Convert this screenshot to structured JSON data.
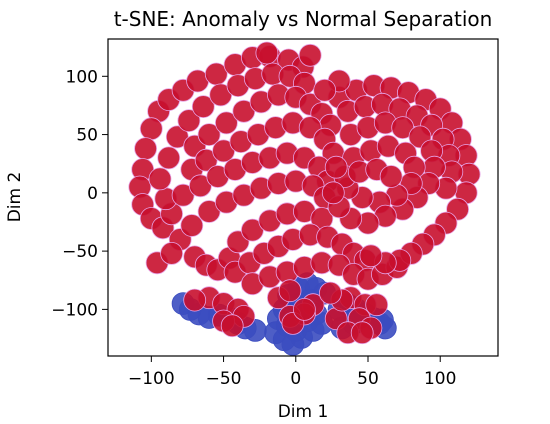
{
  "chart_data": {
    "type": "scatter",
    "title": "t-SNE: Anomaly vs Normal Separation",
    "xlabel": "Dim 1",
    "ylabel": "Dim 2",
    "xlim": [
      -130,
      140
    ],
    "ylim": [
      -140,
      132
    ],
    "xticks": [
      -100,
      -50,
      0,
      50,
      100
    ],
    "xtick_labels": [
      "−100",
      "−50",
      "0",
      "50",
      "100"
    ],
    "yticks": [
      -100,
      -50,
      0,
      50,
      100
    ],
    "ytick_labels": [
      "−100",
      "−50",
      "0",
      "50",
      "100"
    ],
    "grid": false,
    "legend": "none",
    "series": [
      {
        "color": "#3b4cc0",
        "points": [
          [
            -78,
            -95
          ],
          [
            -73,
            -100
          ],
          [
            -67,
            -104
          ],
          [
            -60,
            -107
          ],
          [
            -53,
            -105
          ],
          [
            -45,
            -108
          ],
          [
            -40,
            -112
          ],
          [
            -35,
            -116
          ],
          [
            -28,
            -118
          ],
          [
            -5,
            -88
          ],
          [
            2,
            -82
          ],
          [
            8,
            -78
          ],
          [
            14,
            -82
          ],
          [
            20,
            -86
          ],
          [
            10,
            -92
          ],
          [
            0,
            -96
          ],
          [
            -8,
            -100
          ],
          [
            -12,
            -108
          ],
          [
            -6,
            -114
          ],
          [
            0,
            -118
          ],
          [
            4,
            -124
          ],
          [
            -2,
            -130
          ],
          [
            -8,
            -126
          ],
          [
            -14,
            -120
          ],
          [
            8,
            -110
          ],
          [
            14,
            -104
          ],
          [
            18,
            -112
          ],
          [
            12,
            -118
          ],
          [
            30,
            -100
          ],
          [
            36,
            -96
          ],
          [
            42,
            -100
          ],
          [
            48,
            -104
          ],
          [
            54,
            -108
          ],
          [
            58,
            -112
          ],
          [
            62,
            -116
          ],
          [
            60,
            -109
          ],
          [
            40,
            -112
          ],
          [
            32,
            -116
          ]
        ]
      },
      {
        "color": "#c8102e",
        "points": [
          [
            -95,
            70
          ],
          [
            -88,
            80
          ],
          [
            -78,
            88
          ],
          [
            -68,
            96
          ],
          [
            -55,
            102
          ],
          [
            -42,
            110
          ],
          [
            -30,
            116
          ],
          [
            -18,
            117
          ],
          [
            -5,
            114
          ],
          [
            5,
            108
          ],
          [
            -100,
            55
          ],
          [
            -104,
            38
          ],
          [
            -106,
            20
          ],
          [
            -108,
            5
          ],
          [
            -106,
            -10
          ],
          [
            -100,
            -22
          ],
          [
            -92,
            -30
          ],
          [
            -86,
            -18
          ],
          [
            -90,
            -5
          ],
          [
            -94,
            12
          ],
          [
            -88,
            30
          ],
          [
            -82,
            48
          ],
          [
            -74,
            62
          ],
          [
            -64,
            74
          ],
          [
            -52,
            84
          ],
          [
            -40,
            92
          ],
          [
            -28,
            98
          ],
          [
            -16,
            102
          ],
          [
            -4,
            100
          ],
          [
            6,
            94
          ],
          [
            -70,
            40
          ],
          [
            -60,
            50
          ],
          [
            -48,
            60
          ],
          [
            -36,
            70
          ],
          [
            -24,
            78
          ],
          [
            -12,
            84
          ],
          [
            0,
            82
          ],
          [
            10,
            76
          ],
          [
            18,
            68
          ],
          [
            24,
            58
          ],
          [
            -72,
            20
          ],
          [
            -62,
            28
          ],
          [
            -50,
            36
          ],
          [
            -38,
            44
          ],
          [
            -26,
            50
          ],
          [
            -14,
            56
          ],
          [
            -2,
            60
          ],
          [
            10,
            56
          ],
          [
            20,
            46
          ],
          [
            26,
            34
          ],
          [
            -78,
            -2
          ],
          [
            -66,
            6
          ],
          [
            -54,
            14
          ],
          [
            -42,
            20
          ],
          [
            -30,
            26
          ],
          [
            -18,
            30
          ],
          [
            -6,
            34
          ],
          [
            6,
            30
          ],
          [
            16,
            22
          ],
          [
            22,
            10
          ],
          [
            -80,
            -40
          ],
          [
            -72,
            -28
          ],
          [
            -60,
            -16
          ],
          [
            -48,
            -8
          ],
          [
            -36,
            -2
          ],
          [
            -24,
            4
          ],
          [
            -12,
            8
          ],
          [
            0,
            10
          ],
          [
            12,
            6
          ],
          [
            20,
            -4
          ],
          [
            -70,
            -55
          ],
          [
            -62,
            -62
          ],
          [
            -54,
            -66
          ],
          [
            -46,
            -56
          ],
          [
            -40,
            -42
          ],
          [
            -30,
            -32
          ],
          [
            -18,
            -24
          ],
          [
            -6,
            -18
          ],
          [
            6,
            -16
          ],
          [
            18,
            -22
          ],
          [
            -42,
            -68
          ],
          [
            -32,
            -60
          ],
          [
            -22,
            -52
          ],
          [
            -12,
            -46
          ],
          [
            -2,
            -40
          ],
          [
            10,
            -36
          ],
          [
            22,
            -38
          ],
          [
            32,
            -44
          ],
          [
            40,
            -52
          ],
          [
            48,
            -58
          ],
          [
            -30,
            -78
          ],
          [
            -18,
            -72
          ],
          [
            -6,
            -68
          ],
          [
            6,
            -64
          ],
          [
            18,
            -60
          ],
          [
            30,
            -62
          ],
          [
            40,
            -70
          ],
          [
            50,
            -74
          ],
          [
            60,
            -70
          ],
          [
            70,
            -64
          ],
          [
            30,
            82
          ],
          [
            42,
            88
          ],
          [
            54,
            92
          ],
          [
            66,
            90
          ],
          [
            78,
            86
          ],
          [
            90,
            80
          ],
          [
            100,
            72
          ],
          [
            108,
            60
          ],
          [
            114,
            46
          ],
          [
            118,
            32
          ],
          [
            120,
            16
          ],
          [
            118,
            0
          ],
          [
            112,
            -14
          ],
          [
            104,
            -26
          ],
          [
            96,
            -36
          ],
          [
            88,
            -44
          ],
          [
            80,
            -52
          ],
          [
            72,
            -58
          ],
          [
            62,
            -60
          ],
          [
            52,
            -54
          ],
          [
            36,
            70
          ],
          [
            48,
            74
          ],
          [
            60,
            76
          ],
          [
            72,
            72
          ],
          [
            84,
            66
          ],
          [
            94,
            58
          ],
          [
            102,
            46
          ],
          [
            106,
            32
          ],
          [
            108,
            18
          ],
          [
            104,
            4
          ],
          [
            38,
            50
          ],
          [
            50,
            56
          ],
          [
            62,
            60
          ],
          [
            74,
            56
          ],
          [
            86,
            48
          ],
          [
            94,
            36
          ],
          [
            96,
            22
          ],
          [
            92,
            8
          ],
          [
            84,
            -4
          ],
          [
            74,
            -14
          ],
          [
            40,
            30
          ],
          [
            52,
            36
          ],
          [
            64,
            40
          ],
          [
            76,
            34
          ],
          [
            82,
            22
          ],
          [
            80,
            8
          ],
          [
            70,
            -2
          ],
          [
            58,
            -8
          ],
          [
            46,
            -4
          ],
          [
            36,
            4
          ],
          [
            34,
            14
          ],
          [
            44,
            18
          ],
          [
            56,
            20
          ],
          [
            66,
            14
          ],
          [
            62,
            -20
          ],
          [
            50,
            -26
          ],
          [
            38,
            -22
          ],
          [
            30,
            -12
          ],
          [
            26,
            0
          ],
          [
            28,
            22
          ],
          [
            -96,
            -60
          ],
          [
            -86,
            -52
          ],
          [
            -20,
            120
          ],
          [
            10,
            118
          ],
          [
            30,
            96
          ],
          [
            20,
            88
          ],
          [
            -60,
            -90
          ],
          [
            -50,
            -95
          ],
          [
            -40,
            -100
          ],
          [
            -36,
            -106
          ],
          [
            -50,
            -110
          ],
          [
            -44,
            -114
          ],
          [
            -70,
            -92
          ],
          [
            -12,
            -90
          ],
          [
            -4,
            -84
          ],
          [
            12,
            -96
          ],
          [
            6,
            -104
          ],
          [
            -4,
            -106
          ],
          [
            -2,
            -112
          ],
          [
            6,
            -100
          ],
          [
            38,
            -90
          ],
          [
            48,
            -96
          ],
          [
            28,
            -108
          ],
          [
            44,
            -108
          ],
          [
            52,
            -116
          ],
          [
            36,
            -120
          ],
          [
            46,
            -120
          ],
          [
            56,
            -96
          ],
          [
            32,
            -92
          ],
          [
            24,
            -86
          ]
        ]
      }
    ]
  }
}
